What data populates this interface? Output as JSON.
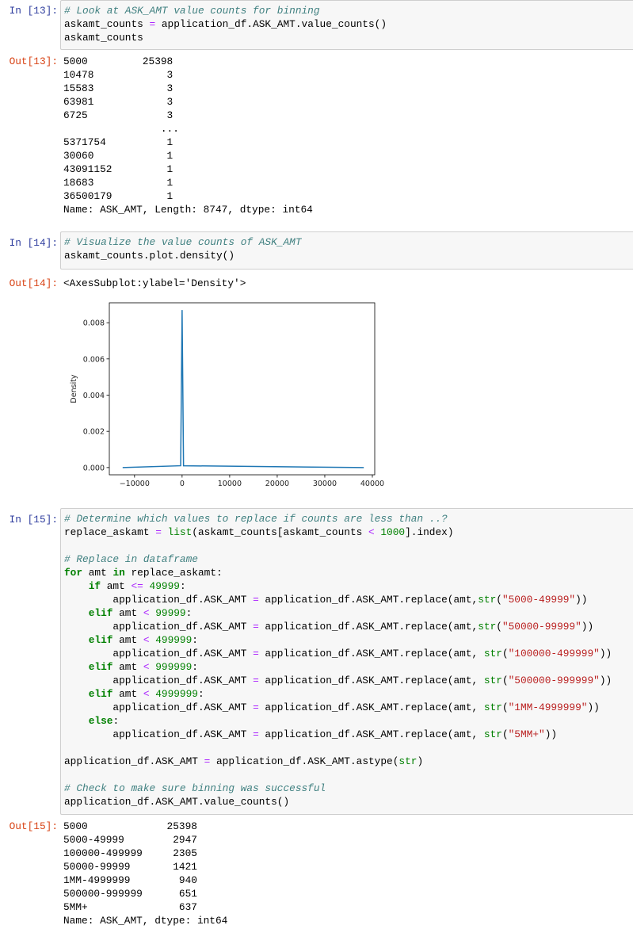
{
  "cells": [
    {
      "in_prompt": "In [13]:",
      "code": [
        [
          [
            "c",
            "# Look at ASK_AMT value counts for binning"
          ]
        ],
        [
          [
            "t",
            "askamt_counts "
          ],
          [
            "o",
            "="
          ],
          [
            "t",
            " application_df.ASK_AMT.value_counts()"
          ]
        ],
        [
          [
            "t",
            "askamt_counts"
          ]
        ]
      ],
      "out_prompt": "Out[13]:",
      "output": [
        "5000         25398",
        "10478            3",
        "15583            3",
        "63981            3",
        "6725             3",
        "                ...",
        "5371754          1",
        "30060            1",
        "43091152         1",
        "18683            1",
        "36500179         1",
        "Name: ASK_AMT, Length: 8747, dtype: int64"
      ]
    },
    {
      "in_prompt": "In [14]:",
      "code": [
        [
          [
            "c",
            "# Visualize the value counts of ASK_AMT"
          ]
        ],
        [
          [
            "t",
            "askamt_counts.plot.density()"
          ]
        ]
      ],
      "out_prompt": "Out[14]:",
      "output": [
        "<AxesSubplot:ylabel='Density'>"
      ]
    },
    {
      "in_prompt": "In [15]:",
      "code": [
        [
          [
            "c",
            "# Determine which values to replace if counts are less than ..?"
          ]
        ],
        [
          [
            "t",
            "replace_askamt "
          ],
          [
            "o",
            "="
          ],
          [
            "t",
            " "
          ],
          [
            "b",
            "list"
          ],
          [
            "t",
            "(askamt_counts[askamt_counts "
          ],
          [
            "o",
            "<"
          ],
          [
            "t",
            " "
          ],
          [
            "n",
            "1000"
          ],
          [
            "t",
            "].index)"
          ]
        ],
        [
          [
            "t",
            ""
          ]
        ],
        [
          [
            "c",
            "# Replace in dataframe"
          ]
        ],
        [
          [
            "k",
            "for"
          ],
          [
            "t",
            " amt "
          ],
          [
            "k",
            "in"
          ],
          [
            "t",
            " replace_askamt:"
          ]
        ],
        [
          [
            "t",
            "    "
          ],
          [
            "k",
            "if"
          ],
          [
            "t",
            " amt "
          ],
          [
            "o",
            "<="
          ],
          [
            "t",
            " "
          ],
          [
            "n",
            "49999"
          ],
          [
            "t",
            ":"
          ]
        ],
        [
          [
            "t",
            "        application_df.ASK_AMT "
          ],
          [
            "o",
            "="
          ],
          [
            "t",
            " application_df.ASK_AMT.replace(amt,"
          ],
          [
            "b",
            "str"
          ],
          [
            "t",
            "("
          ],
          [
            "s",
            "\"5000-49999\""
          ],
          [
            "t",
            "))"
          ]
        ],
        [
          [
            "t",
            "    "
          ],
          [
            "k",
            "elif"
          ],
          [
            "t",
            " amt "
          ],
          [
            "o",
            "<"
          ],
          [
            "t",
            " "
          ],
          [
            "n",
            "99999"
          ],
          [
            "t",
            ":"
          ]
        ],
        [
          [
            "t",
            "        application_df.ASK_AMT "
          ],
          [
            "o",
            "="
          ],
          [
            "t",
            " application_df.ASK_AMT.replace(amt,"
          ],
          [
            "b",
            "str"
          ],
          [
            "t",
            "("
          ],
          [
            "s",
            "\"50000-99999\""
          ],
          [
            "t",
            "))"
          ]
        ],
        [
          [
            "t",
            "    "
          ],
          [
            "k",
            "elif"
          ],
          [
            "t",
            " amt "
          ],
          [
            "o",
            "<"
          ],
          [
            "t",
            " "
          ],
          [
            "n",
            "499999"
          ],
          [
            "t",
            ":"
          ]
        ],
        [
          [
            "t",
            "        application_df.ASK_AMT "
          ],
          [
            "o",
            "="
          ],
          [
            "t",
            " application_df.ASK_AMT.replace(amt, "
          ],
          [
            "b",
            "str"
          ],
          [
            "t",
            "("
          ],
          [
            "s",
            "\"100000-499999\""
          ],
          [
            "t",
            "))"
          ]
        ],
        [
          [
            "t",
            "    "
          ],
          [
            "k",
            "elif"
          ],
          [
            "t",
            " amt "
          ],
          [
            "o",
            "<"
          ],
          [
            "t",
            " "
          ],
          [
            "n",
            "999999"
          ],
          [
            "t",
            ":"
          ]
        ],
        [
          [
            "t",
            "        application_df.ASK_AMT "
          ],
          [
            "o",
            "="
          ],
          [
            "t",
            " application_df.ASK_AMT.replace(amt, "
          ],
          [
            "b",
            "str"
          ],
          [
            "t",
            "("
          ],
          [
            "s",
            "\"500000-999999\""
          ],
          [
            "t",
            "))"
          ]
        ],
        [
          [
            "t",
            "    "
          ],
          [
            "k",
            "elif"
          ],
          [
            "t",
            " amt "
          ],
          [
            "o",
            "<"
          ],
          [
            "t",
            " "
          ],
          [
            "n",
            "4999999"
          ],
          [
            "t",
            ":"
          ]
        ],
        [
          [
            "t",
            "        application_df.ASK_AMT "
          ],
          [
            "o",
            "="
          ],
          [
            "t",
            " application_df.ASK_AMT.replace(amt, "
          ],
          [
            "b",
            "str"
          ],
          [
            "t",
            "("
          ],
          [
            "s",
            "\"1MM-4999999\""
          ],
          [
            "t",
            "))"
          ]
        ],
        [
          [
            "t",
            "    "
          ],
          [
            "k",
            "else"
          ],
          [
            "t",
            ":"
          ]
        ],
        [
          [
            "t",
            "        application_df.ASK_AMT "
          ],
          [
            "o",
            "="
          ],
          [
            "t",
            " application_df.ASK_AMT.replace(amt, "
          ],
          [
            "b",
            "str"
          ],
          [
            "t",
            "("
          ],
          [
            "s",
            "\"5MM+\""
          ],
          [
            "t",
            "))"
          ]
        ],
        [
          [
            "t",
            ""
          ]
        ],
        [
          [
            "t",
            "application_df.ASK_AMT "
          ],
          [
            "o",
            "="
          ],
          [
            "t",
            " application_df.ASK_AMT.astype("
          ],
          [
            "b",
            "str"
          ],
          [
            "t",
            ")"
          ]
        ],
        [
          [
            "t",
            ""
          ]
        ],
        [
          [
            "c",
            "# Check to make sure binning was successful"
          ]
        ],
        [
          [
            "t",
            "application_df.ASK_AMT.value_counts()"
          ]
        ]
      ],
      "out_prompt": "Out[15]:",
      "output": [
        "5000             25398",
        "5000-49999        2947",
        "100000-499999     2305",
        "50000-99999       1421",
        "1MM-4999999        940",
        "500000-999999      651",
        "5MM+               637",
        "Name: ASK_AMT, dtype: int64"
      ]
    }
  ],
  "chart_data": {
    "type": "line",
    "title": "",
    "xlabel": "",
    "ylabel": "Density",
    "xlim": [
      -15300,
      40500
    ],
    "ylim": [
      -0.0004,
      0.0091
    ],
    "xticks": [
      -10000,
      0,
      10000,
      20000,
      30000,
      40000
    ],
    "xtick_labels": [
      "−10000",
      "0",
      "10000",
      "20000",
      "30000",
      "40000"
    ],
    "yticks": [
      0.0,
      0.002,
      0.004,
      0.006,
      0.008
    ],
    "ytick_labels": [
      "0.000",
      "0.002",
      "0.004",
      "0.006",
      "0.008"
    ],
    "grid": false,
    "series": [
      {
        "x": [
          -12500,
          -300,
          0,
          300,
          38200
        ],
        "y": [
          0.0,
          0.0001,
          0.0087,
          0.0001,
          0.0
        ],
        "color": "#1f77b4"
      }
    ]
  },
  "colors": {
    "in_prompt": "#303f9f",
    "out_prompt": "#d84315",
    "cell_bg": "#f7f7f7",
    "cell_border": "#cfcfcf"
  }
}
